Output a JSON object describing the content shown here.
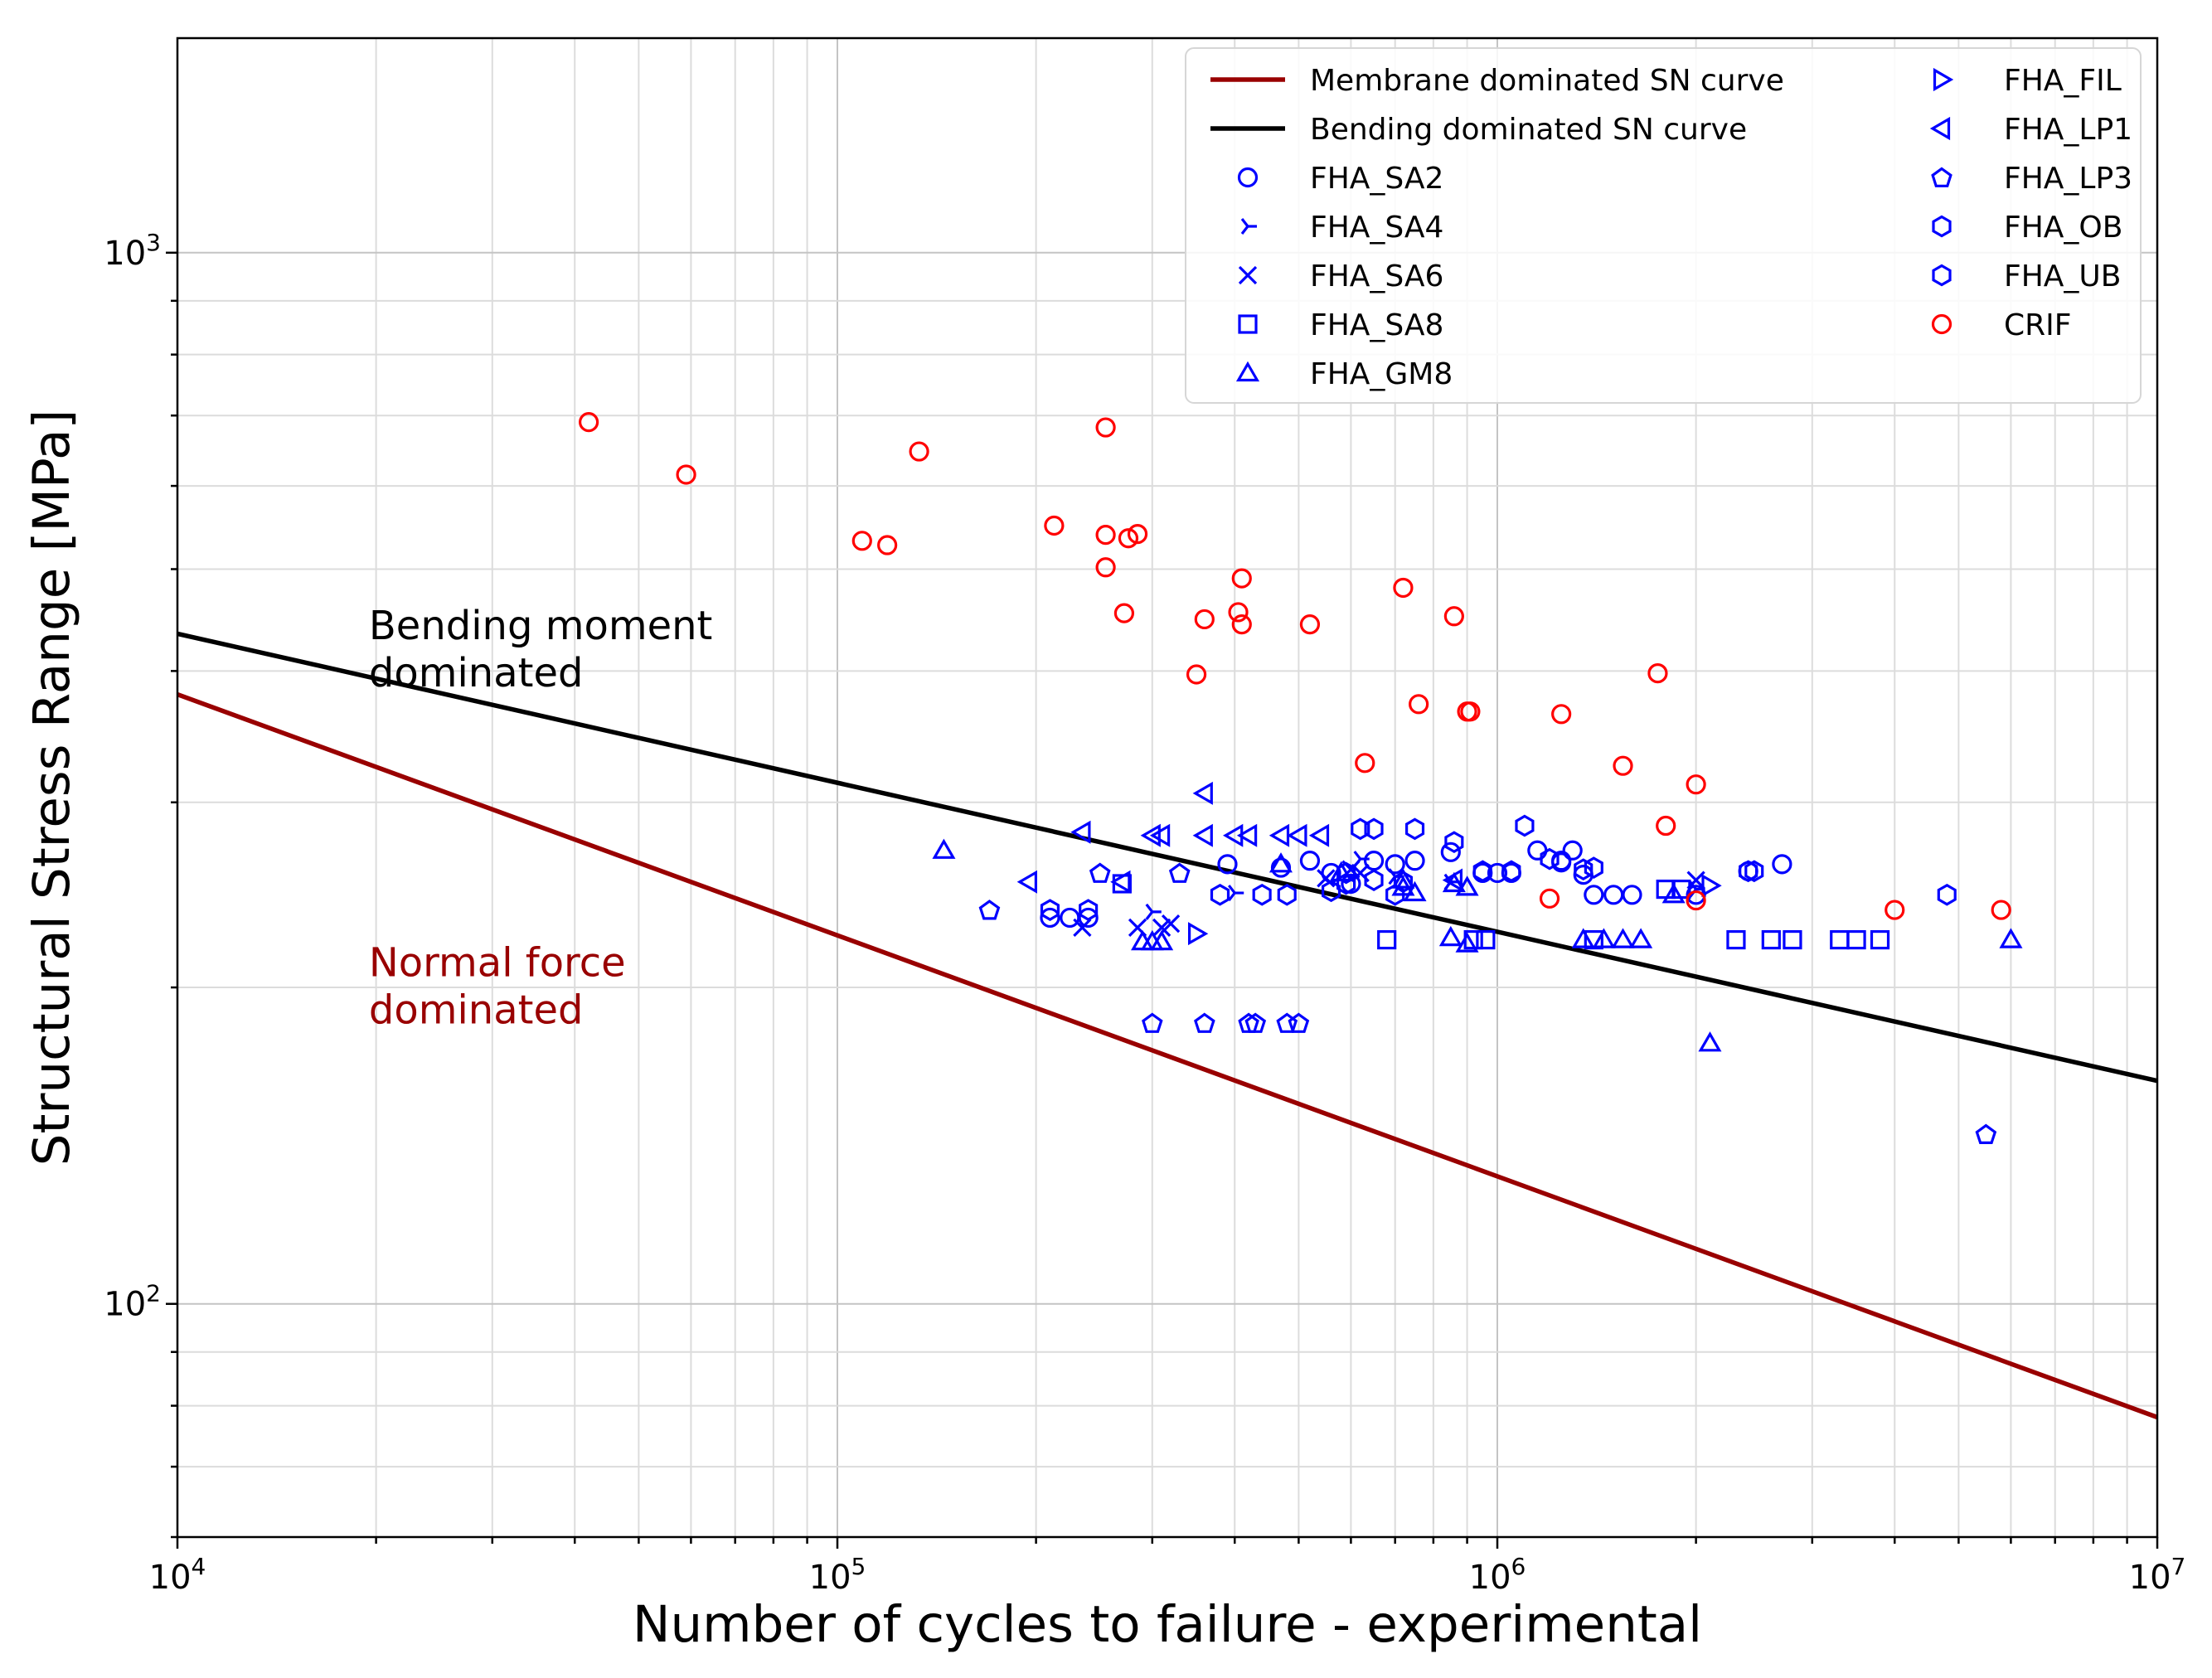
{
  "chart_data": {
    "type": "scatter",
    "xscale": "log",
    "yscale": "log",
    "xlim": [
      10000,
      10000000
    ],
    "ylim": [
      60,
      1600
    ],
    "xlabel": "Number of cycles to failure - experimental",
    "ylabel": "Structural Stress Range [MPa]",
    "grid": true,
    "legend_position": "top-right",
    "x_ticks": [
      {
        "base": "10",
        "exp": "4"
      },
      {
        "base": "10",
        "exp": "5"
      },
      {
        "base": "10",
        "exp": "6"
      },
      {
        "base": "10",
        "exp": "7"
      }
    ],
    "y_ticks": [
      {
        "base": "10",
        "exp": "2",
        "value": 100
      },
      {
        "base": "10",
        "exp": "3",
        "value": 1000
      }
    ],
    "annotations": [
      {
        "lines": [
          "Bending moment",
          "dominated"
        ],
        "color": "#000000",
        "x": 19500,
        "y": 429
      },
      {
        "lines": [
          "Normal force",
          "dominated"
        ],
        "color": "#990000",
        "x": 19500,
        "y": 205
      }
    ],
    "lines": [
      {
        "name": "Membrane dominated SN curve",
        "color": "#990000",
        "x": [
          10000,
          10000000
        ],
        "y": [
          380,
          78
        ]
      },
      {
        "name": "Bending dominated SN curve",
        "color": "#000000",
        "x": [
          10000,
          10000000
        ],
        "y": [
          434,
          163
        ]
      }
    ],
    "series": [
      {
        "name": "FHA_SA2",
        "marker": "circle",
        "color": "#0000ff",
        "points": [
          [
            210000,
            233
          ],
          [
            225000,
            233
          ],
          [
            240000,
            233
          ],
          [
            390000,
            262
          ],
          [
            470000,
            260
          ],
          [
            520000,
            264
          ],
          [
            560000,
            257
          ],
          [
            600000,
            251
          ],
          [
            650000,
            264
          ],
          [
            700000,
            262
          ],
          [
            750000,
            264
          ],
          [
            850000,
            269
          ],
          [
            950000,
            257
          ],
          [
            1000000,
            257
          ],
          [
            1050000,
            257
          ],
          [
            1150000,
            270
          ],
          [
            1250000,
            264
          ],
          [
            1300000,
            270
          ],
          [
            1350000,
            256
          ],
          [
            1400000,
            245
          ],
          [
            1500000,
            245
          ],
          [
            1600000,
            245
          ],
          [
            2400000,
            258
          ],
          [
            2700000,
            262
          ],
          [
            2000000,
            245
          ],
          [
            1250000,
            263
          ]
        ]
      },
      {
        "name": "FHA_SA4",
        "marker": "tri_right",
        "color": "#0000ff",
        "points": [
          [
            300000,
            236
          ],
          [
            400000,
            246
          ],
          [
            620000,
            265
          ],
          [
            700000,
            255
          ],
          [
            850000,
            252
          ],
          [
            2000000,
            248
          ]
        ]
      },
      {
        "name": "FHA_SA6",
        "marker": "x",
        "color": "#0000ff",
        "points": [
          [
            235000,
            228
          ],
          [
            285000,
            228
          ],
          [
            310000,
            228
          ],
          [
            320000,
            230
          ],
          [
            550000,
            254
          ],
          [
            600000,
            259
          ],
          [
            620000,
            257
          ],
          [
            2000000,
            253
          ]
        ]
      },
      {
        "name": "FHA_SA8",
        "marker": "square",
        "color": "#0000ff",
        "points": [
          [
            270000,
            251
          ],
          [
            680000,
            222
          ],
          [
            920000,
            222
          ],
          [
            960000,
            222
          ],
          [
            1400000,
            222
          ],
          [
            1800000,
            248
          ],
          [
            1900000,
            248
          ],
          [
            2300000,
            222
          ],
          [
            2600000,
            222
          ],
          [
            2800000,
            222
          ],
          [
            3300000,
            222
          ],
          [
            3500000,
            222
          ],
          [
            3800000,
            222
          ]
        ]
      },
      {
        "name": "FHA_GM8",
        "marker": "triangle_up",
        "color": "#0000ff",
        "points": [
          [
            145000,
            270
          ],
          [
            290000,
            221
          ],
          [
            300000,
            221
          ],
          [
            310000,
            221
          ],
          [
            470000,
            262
          ],
          [
            580000,
            257
          ],
          [
            720000,
            253
          ],
          [
            750000,
            246
          ],
          [
            860000,
            251
          ],
          [
            900000,
            249
          ],
          [
            850000,
            223
          ],
          [
            900000,
            220
          ],
          [
            1350000,
            222
          ],
          [
            1450000,
            222
          ],
          [
            1550000,
            222
          ],
          [
            1650000,
            222
          ],
          [
            1850000,
            245
          ],
          [
            2100000,
            177
          ],
          [
            6000000,
            222
          ],
          [
            720000,
            249
          ]
        ]
      },
      {
        "name": "FHA_FIL",
        "marker": "triangle_right",
        "color": "#0000ff",
        "points": [
          [
            350000,
            225
          ],
          [
            2100000,
            250
          ]
        ]
      },
      {
        "name": "FHA_LP1",
        "marker": "triangle_left",
        "color": "#0000ff",
        "points": [
          [
            195000,
            252
          ],
          [
            235000,
            281
          ],
          [
            270000,
            252
          ],
          [
            300000,
            279
          ],
          [
            310000,
            279
          ],
          [
            360000,
            306
          ],
          [
            360000,
            279
          ],
          [
            400000,
            279
          ],
          [
            420000,
            279
          ],
          [
            470000,
            279
          ],
          [
            500000,
            279
          ],
          [
            540000,
            279
          ],
          [
            860000,
            253
          ]
        ]
      },
      {
        "name": "FHA_LP3",
        "marker": "pentagon",
        "color": "#0000ff",
        "points": [
          [
            170000,
            237
          ],
          [
            250000,
            257
          ],
          [
            300000,
            185
          ],
          [
            330000,
            257
          ],
          [
            360000,
            185
          ],
          [
            420000,
            185
          ],
          [
            430000,
            185
          ],
          [
            480000,
            185
          ],
          [
            500000,
            185
          ],
          [
            5500000,
            145
          ]
        ]
      },
      {
        "name": "FHA_OB",
        "marker": "hexagon",
        "color": "#0000ff",
        "points": [
          [
            210000,
            237
          ],
          [
            240000,
            237
          ],
          [
            380000,
            245
          ],
          [
            480000,
            245
          ],
          [
            560000,
            247
          ],
          [
            590000,
            257
          ],
          [
            620000,
            283
          ],
          [
            650000,
            283
          ],
          [
            700000,
            245
          ],
          [
            750000,
            283
          ],
          [
            860000,
            275
          ],
          [
            1100000,
            285
          ],
          [
            1400000,
            260
          ],
          [
            2400000,
            258
          ],
          [
            4800000,
            245
          ]
        ]
      },
      {
        "name": "FHA_UB",
        "marker": "hexagon",
        "color": "#0000ff",
        "points": [
          [
            440000,
            245
          ],
          [
            590000,
            251
          ],
          [
            650000,
            253
          ],
          [
            720000,
            252
          ],
          [
            950000,
            258
          ],
          [
            1050000,
            258
          ],
          [
            1200000,
            265
          ],
          [
            1350000,
            259
          ],
          [
            2450000,
            258
          ]
        ]
      },
      {
        "name": "CRIF",
        "marker": "circle",
        "color": "#ff0000",
        "points": [
          [
            42000,
            690
          ],
          [
            59000,
            615
          ],
          [
            109000,
            532
          ],
          [
            119000,
            527
          ],
          [
            133000,
            647
          ],
          [
            213000,
            550
          ],
          [
            255000,
            682
          ],
          [
            255000,
            539
          ],
          [
            255000,
            502
          ],
          [
            272000,
            454
          ],
          [
            276000,
            535
          ],
          [
            285000,
            540
          ],
          [
            350000,
            397
          ],
          [
            360000,
            448
          ],
          [
            405000,
            455
          ],
          [
            410000,
            443
          ],
          [
            410000,
            490
          ],
          [
            520000,
            443
          ],
          [
            630000,
            327
          ],
          [
            720000,
            480
          ],
          [
            760000,
            372
          ],
          [
            860000,
            451
          ],
          [
            900000,
            366
          ],
          [
            910000,
            366
          ],
          [
            1200000,
            243
          ],
          [
            1250000,
            364
          ],
          [
            1550000,
            325
          ],
          [
            1750000,
            398
          ],
          [
            1800000,
            285
          ],
          [
            2000000,
            242
          ],
          [
            2000000,
            312
          ],
          [
            4000000,
            237
          ],
          [
            5800000,
            237
          ]
        ]
      }
    ]
  }
}
